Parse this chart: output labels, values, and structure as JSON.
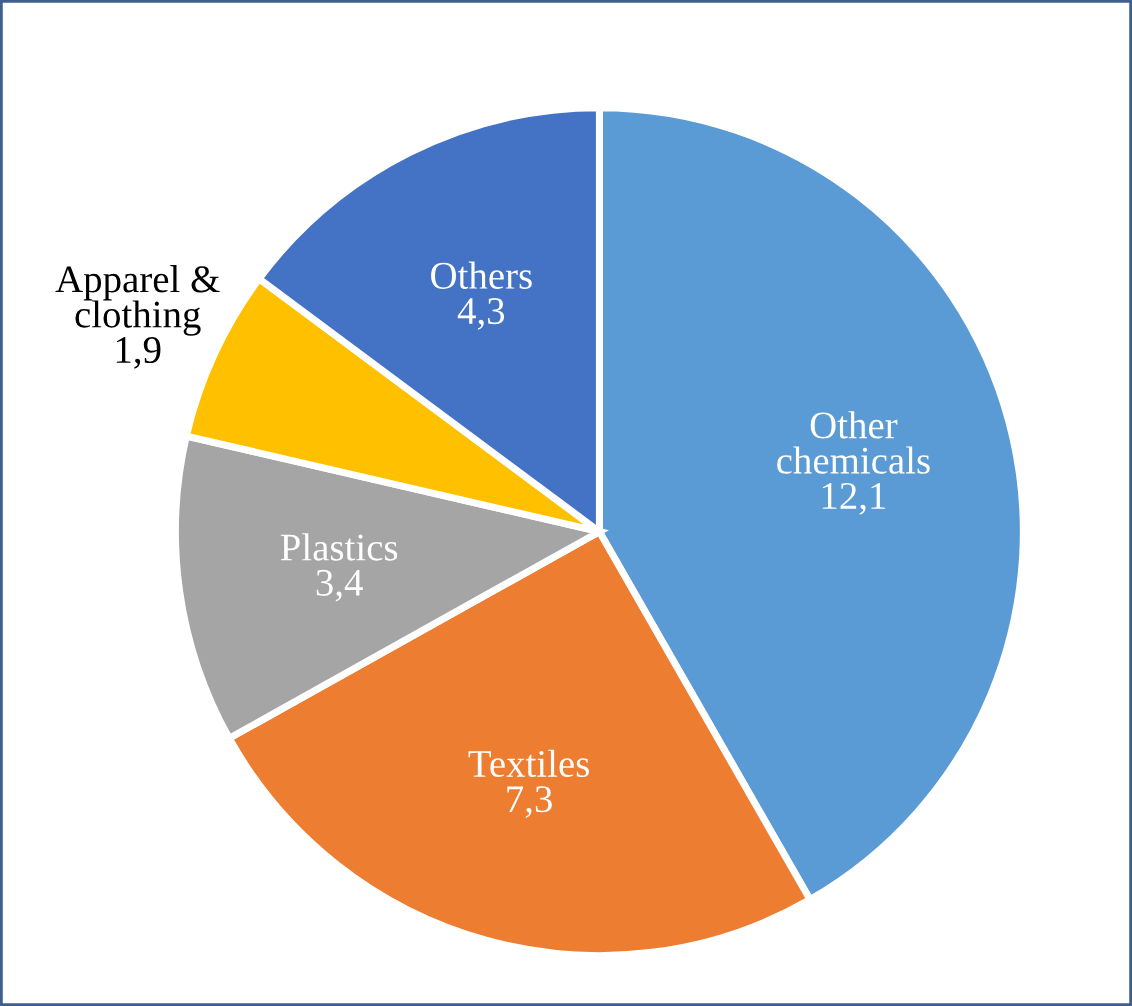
{
  "chart_data": {
    "type": "pie",
    "categories": [
      "Other chemicals",
      "Textiles",
      "Plastics",
      "Apparel & clothing",
      "Others"
    ],
    "values": [
      12.1,
      7.3,
      3.4,
      1.9,
      4.3
    ],
    "value_labels": [
      "12,1",
      "7,3",
      "3,4",
      "1,9",
      "4,3"
    ],
    "colors": [
      "#5b9bd5",
      "#ed7d31",
      "#a5a5a5",
      "#ffc000",
      "#4472c4"
    ],
    "legend": false
  }
}
